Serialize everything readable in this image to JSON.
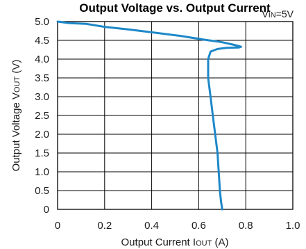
{
  "chart_data": {
    "type": "line",
    "title": "Output Voltage vs. Output Current",
    "annotation": "VIN=5V",
    "annotation_parts": {
      "main": "V",
      "sub": "IN",
      "rest": "=5V"
    },
    "xlabel_parts": {
      "pre": "Output Current I",
      "sub": "OUT",
      "post": " (A)"
    },
    "ylabel_parts": {
      "pre": "Output Voltage V",
      "sub": "OUT",
      "post": " (V)"
    },
    "xlim": [
      0,
      1.0
    ],
    "ylim": [
      0,
      5.0
    ],
    "x_ticks": [
      "0",
      "0.2",
      "0.4",
      "0.6",
      "0.8",
      "1.0"
    ],
    "y_ticks": [
      "0",
      "0.5",
      "1.0",
      "1.5",
      "2.0",
      "2.5",
      "3.0",
      "3.5",
      "4.0",
      "4.5",
      "5.0"
    ],
    "grid": true,
    "line_color": "#1e88c8",
    "series": [
      {
        "x": [
          0.0,
          0.05,
          0.12,
          0.2,
          0.3,
          0.42,
          0.52,
          0.62,
          0.7,
          0.75,
          0.78,
          0.77,
          0.72,
          0.68,
          0.65,
          0.64,
          0.64,
          0.65,
          0.66,
          0.67,
          0.68,
          0.685,
          0.69,
          0.695,
          0.7
        ],
        "y": [
          5.0,
          4.96,
          4.94,
          4.86,
          4.79,
          4.7,
          4.62,
          4.52,
          4.45,
          4.38,
          4.33,
          4.31,
          4.3,
          4.27,
          4.2,
          4.0,
          3.5,
          3.0,
          2.5,
          2.0,
          1.5,
          1.0,
          0.5,
          0.2,
          0.0
        ]
      }
    ]
  }
}
